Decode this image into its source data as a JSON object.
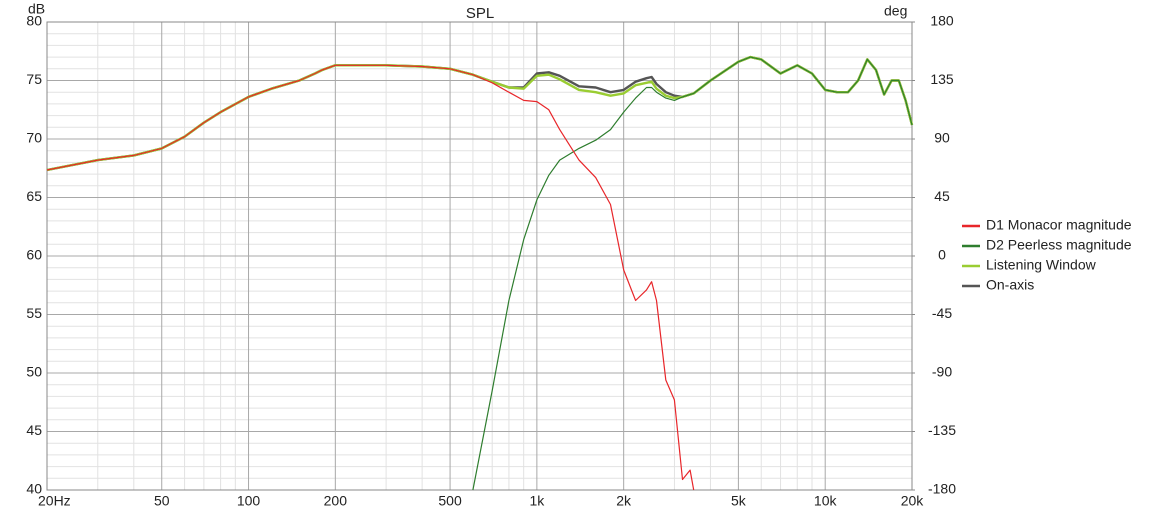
{
  "chart_data": {
    "type": "line",
    "title": "SPL",
    "ylabel": "dB",
    "y2label": "deg",
    "xscale": "log",
    "grid": true,
    "legend": "right",
    "x": [
      20,
      30,
      40,
      50,
      60,
      70,
      80,
      100,
      120,
      150,
      170,
      180,
      200,
      250,
      300,
      400,
      500,
      600,
      700,
      800,
      900,
      1000,
      1100,
      1200,
      1400,
      1600,
      1800,
      2000,
      2200,
      2400,
      2500,
      2600,
      2800,
      3000,
      3200,
      3400,
      3500,
      4000,
      5000,
      5500,
      6000,
      7000,
      8000,
      9000,
      10000,
      11000,
      12000,
      13000,
      14000,
      15000,
      16000,
      17000,
      18000,
      19000,
      20000
    ],
    "series": [
      {
        "name": "On-axis",
        "color": "#555555",
        "width": 2.4,
        "values": [
          67.35,
          68.2,
          68.6,
          69.2,
          70.2,
          71.4,
          72.3,
          73.6,
          74.3,
          75.0,
          75.6,
          75.9,
          76.3,
          76.3,
          76.3,
          76.2,
          76.0,
          75.5,
          74.9,
          74.4,
          74.4,
          75.6,
          75.7,
          75.4,
          74.5,
          74.4,
          74.0,
          74.2,
          74.9,
          75.2,
          75.3,
          74.7,
          74.0,
          73.7,
          73.6,
          73.8,
          73.9,
          75.0,
          76.6,
          77.0,
          76.8,
          75.6,
          76.3,
          75.6,
          74.2,
          74.0,
          74.0,
          75.0,
          76.8,
          75.9,
          73.8,
          75.0,
          75.0,
          73.3,
          71.2
        ]
      },
      {
        "name": "Listening Window",
        "color": "#9acd32",
        "width": 2.4,
        "values": [
          67.35,
          68.2,
          68.6,
          69.2,
          70.2,
          71.4,
          72.3,
          73.6,
          74.3,
          75.0,
          75.6,
          75.9,
          76.3,
          76.3,
          76.3,
          76.2,
          76.0,
          75.5,
          74.9,
          74.4,
          74.3,
          75.4,
          75.5,
          75.1,
          74.2,
          74.0,
          73.7,
          73.9,
          74.6,
          74.8,
          74.9,
          74.3,
          73.7,
          73.5,
          73.6,
          73.8,
          73.9,
          75.0,
          76.6,
          77.0,
          76.8,
          75.6,
          76.3,
          75.6,
          74.2,
          74.0,
          74.0,
          75.0,
          76.8,
          75.9,
          73.8,
          75.0,
          75.0,
          73.3,
          71.2
        ]
      },
      {
        "name": "D2 Peerless magnitude",
        "color": "#2e7d2e",
        "width": 1.2,
        "values": [
          null,
          null,
          null,
          null,
          null,
          null,
          null,
          null,
          null,
          null,
          null,
          null,
          null,
          null,
          null,
          null,
          null,
          40.0,
          48.5,
          56.2,
          61.4,
          64.8,
          66.9,
          68.2,
          69.2,
          69.9,
          70.8,
          72.3,
          73.5,
          74.4,
          74.4,
          74.0,
          73.5,
          73.3,
          73.6,
          73.8,
          73.9,
          75.0,
          76.6,
          77.0,
          76.8,
          75.6,
          76.3,
          75.6,
          74.2,
          74.0,
          74.0,
          75.0,
          76.8,
          75.9,
          73.8,
          75.0,
          75.0,
          73.3,
          71.2
        ]
      },
      {
        "name": "D1 Monacor magnitude",
        "color": "#e8262a",
        "width": 1.2,
        "values": [
          67.35,
          68.2,
          68.6,
          69.2,
          70.2,
          71.4,
          72.3,
          73.6,
          74.3,
          75.0,
          75.6,
          75.9,
          76.3,
          76.3,
          76.3,
          76.2,
          76.0,
          75.5,
          74.8,
          74.0,
          73.3,
          73.2,
          72.5,
          70.8,
          68.2,
          66.7,
          64.4,
          58.8,
          56.2,
          57.1,
          57.8,
          56.2,
          49.4,
          47.7,
          40.9,
          41.7,
          40.0,
          null,
          null,
          null,
          null,
          null,
          null,
          null,
          null,
          null,
          null,
          null,
          null,
          null,
          null,
          null,
          null,
          null,
          null
        ]
      }
    ],
    "xlim": [
      20,
      20000
    ],
    "xticks": [
      {
        "value": 20,
        "label": "20Hz"
      },
      50,
      100,
      200,
      500,
      {
        "value": 1000,
        "label": "1k"
      },
      {
        "value": 2000,
        "label": "2k"
      },
      {
        "value": 5000,
        "label": "5k"
      },
      {
        "value": 10000,
        "label": "10k"
      },
      {
        "value": 20000,
        "label": "20k"
      }
    ],
    "xminorticks": [
      30,
      40,
      60,
      70,
      80,
      90,
      300,
      400,
      600,
      700,
      800,
      900,
      3000,
      4000,
      6000,
      7000,
      8000,
      9000
    ],
    "ylim": [
      40,
      80
    ],
    "yticks": [
      40,
      45,
      50,
      55,
      60,
      65,
      70,
      75,
      80
    ],
    "yminorticks": [
      41,
      42,
      43,
      44,
      46,
      47,
      48,
      49,
      51,
      52,
      53,
      54,
      56,
      57,
      58,
      59,
      61,
      62,
      63,
      64,
      66,
      67,
      68,
      69,
      71,
      72,
      73,
      74,
      76,
      77,
      78,
      79
    ],
    "y2lim": [
      -180,
      180
    ],
    "y2ticks": [
      -180,
      -135,
      -90,
      -45,
      0,
      45,
      90,
      135,
      180
    ]
  }
}
